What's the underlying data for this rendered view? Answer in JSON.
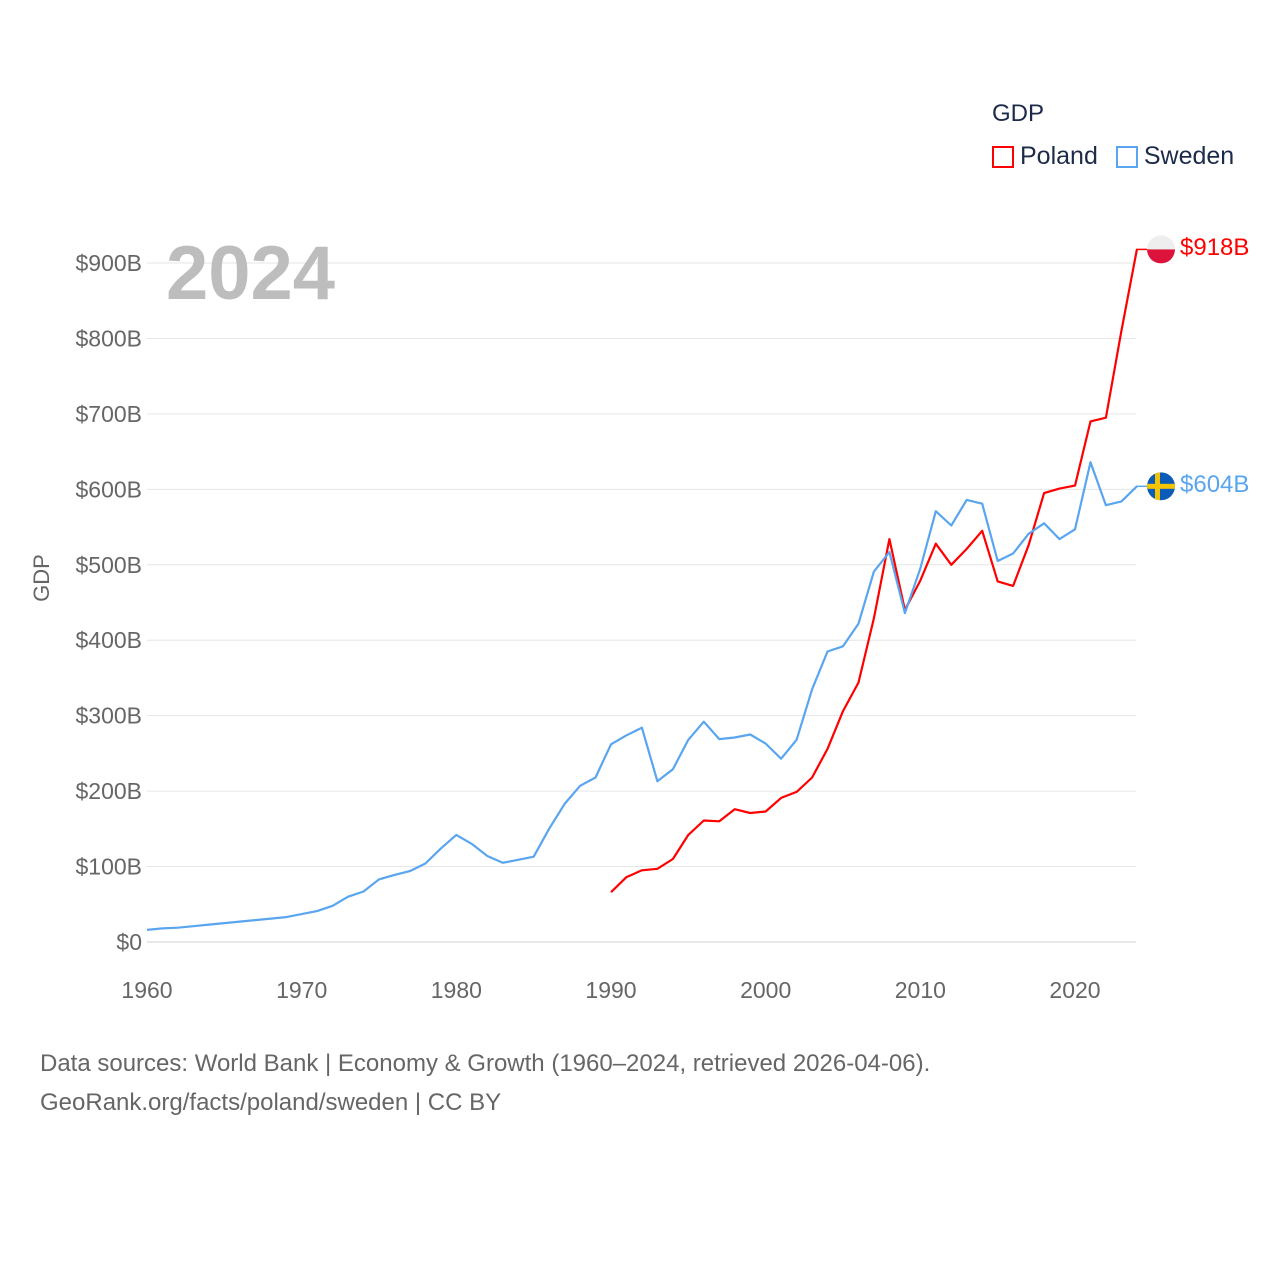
{
  "chart_data": {
    "type": "line",
    "title": "2024",
    "legend_title": "GDP",
    "ylabel": "GDP",
    "xlabel": "",
    "xlim": [
      1960,
      2024
    ],
    "ylim": [
      0,
      900
    ],
    "x_ticks": [
      "1960",
      "1970",
      "1980",
      "1990",
      "2000",
      "2010",
      "2020"
    ],
    "y_ticks": [
      "$0",
      "$100B",
      "$200B",
      "$300B",
      "$400B",
      "$500B",
      "$600B",
      "$700B",
      "$800B",
      "$900B"
    ],
    "grid": true,
    "legend_position": "top-right",
    "series": [
      {
        "name": "Poland",
        "color": "#ff0000",
        "end_label": "$918B",
        "start_year": 1990,
        "values": [
          66,
          86,
          95,
          97,
          110,
          142,
          161,
          160,
          176,
          171,
          173,
          191,
          199,
          218,
          256,
          306,
          344,
          429,
          534,
          440,
          479,
          528,
          500,
          521,
          545,
          478,
          472,
          526,
          595,
          601,
          605,
          690,
          695,
          810,
          918
        ]
      },
      {
        "name": "Sweden",
        "color": "#5aa5ef",
        "end_label": "$604B",
        "start_year": 1960,
        "values": [
          16,
          18,
          19,
          21,
          23,
          25,
          27,
          29,
          31,
          33,
          37,
          41,
          48,
          60,
          67,
          83,
          89,
          94,
          104,
          124,
          142,
          130,
          114,
          105,
          109,
          113,
          150,
          183,
          207,
          218,
          262,
          274,
          284,
          213,
          229,
          268,
          292,
          269,
          271,
          275,
          263,
          243,
          268,
          335,
          385,
          392,
          422,
          491,
          517,
          436,
          495,
          571,
          552,
          586,
          581,
          505,
          515,
          541,
          555,
          534,
          547,
          636,
          579,
          584,
          604
        ]
      }
    ]
  },
  "footer": {
    "line1": "Data sources: World Bank | Economy & Growth (1960–2024, retrieved 2026-04-06).",
    "line2": "GeoRank.org/facts/poland/sweden | CC BY"
  }
}
